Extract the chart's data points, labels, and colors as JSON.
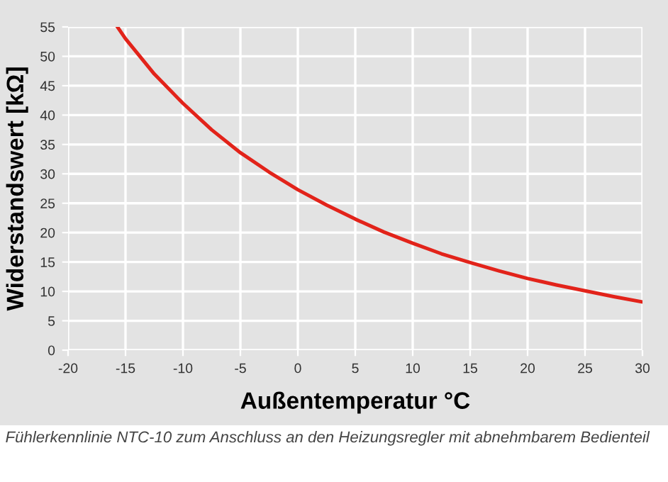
{
  "chart_data": {
    "type": "line",
    "xlabel": "Außentemperatur °C",
    "ylabel": "Widerstandswert [kΩ]",
    "annotations": [
      "Fühlerkennlinie NTC-10 zum Anschluss an den Heizungsregler mit abnehmbarem Bedienteil"
    ],
    "series": [
      {
        "color": "#e2231a",
        "x": [
          -15.7,
          -15,
          -12.5,
          -10,
          -7.5,
          -5,
          -2.5,
          0,
          2.5,
          5,
          7.5,
          10,
          12.5,
          15,
          17.5,
          20,
          22.5,
          25,
          27.5,
          30
        ],
        "values": [
          55,
          53,
          47,
          42,
          37.5,
          33.6,
          30.3,
          27.3,
          24.7,
          22.3,
          20.1,
          18.2,
          16.4,
          14.9,
          13.5,
          12.2,
          11.1,
          10.1,
          9.1,
          8.2
        ]
      }
    ],
    "xlim": [
      -20,
      30
    ],
    "xticks": [
      -20,
      -15,
      -10,
      -5,
      0,
      5,
      10,
      15,
      20,
      25,
      30
    ],
    "ylim": [
      0,
      55
    ],
    "yticks": [
      0,
      5,
      10,
      15,
      20,
      25,
      30,
      35,
      40,
      45,
      50,
      55
    ],
    "grid": true,
    "marker": "none",
    "line_style": "solid"
  }
}
